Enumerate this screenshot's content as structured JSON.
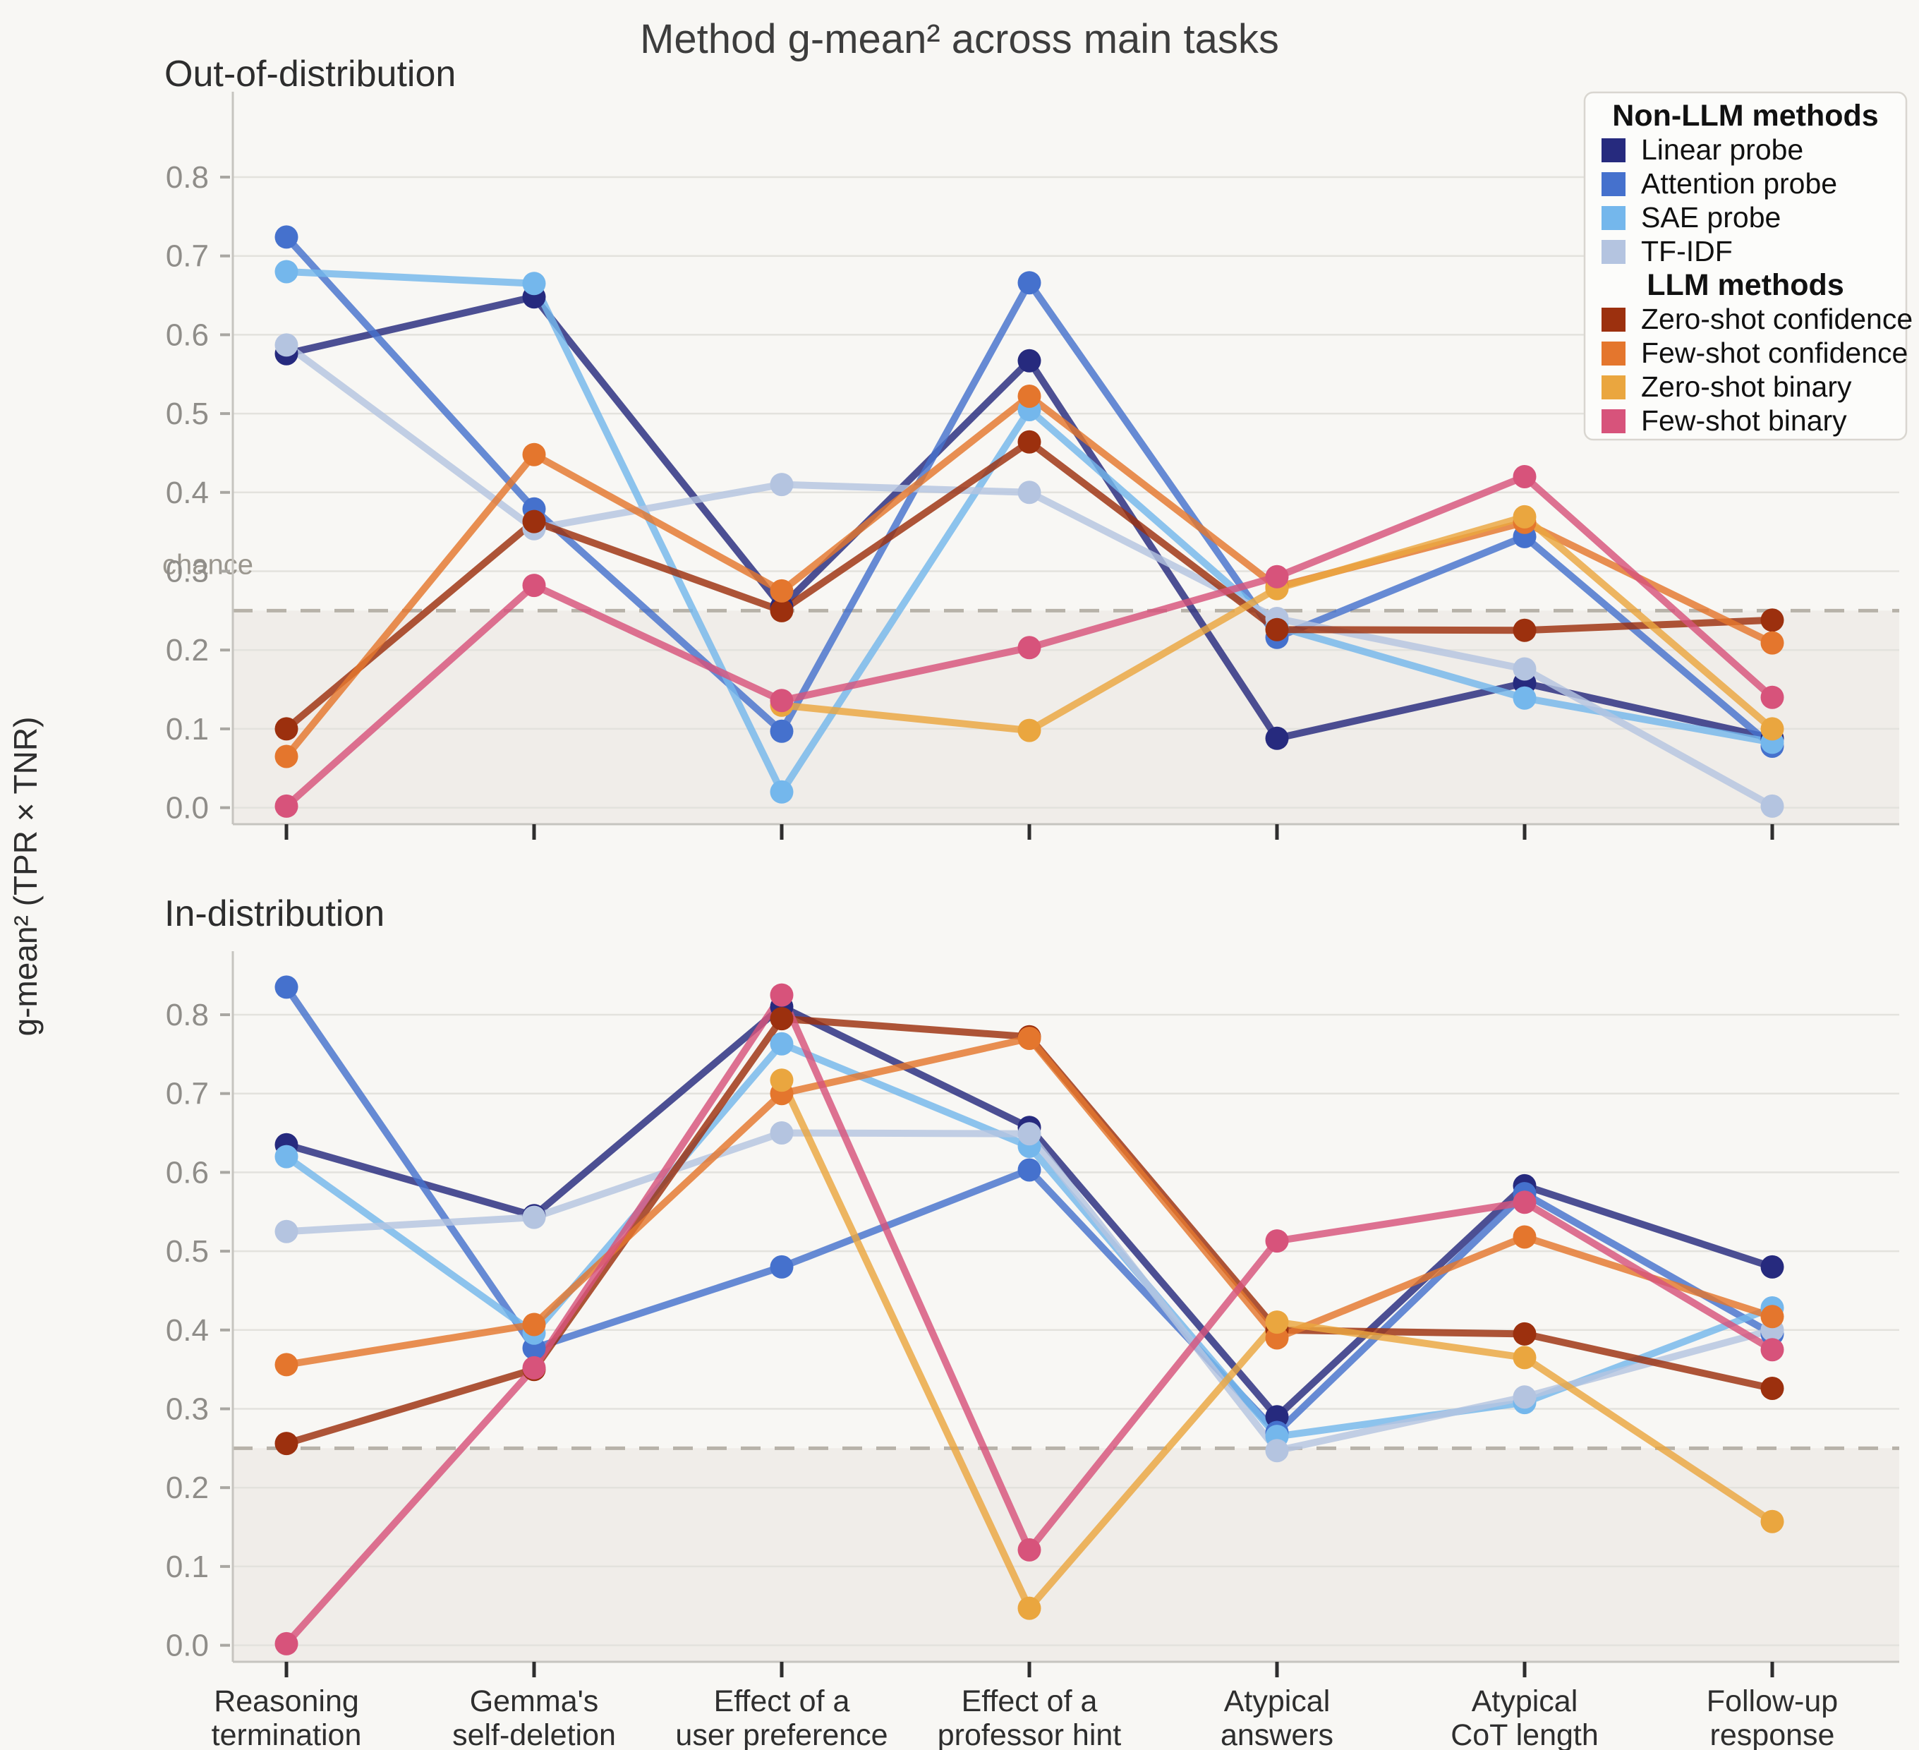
{
  "title": "Method g-mean² across main tasks",
  "y_axis_label": "g-mean² (TPR × TNR)",
  "chance_label": "chance",
  "chance_value": 0.25,
  "colors": {
    "linear_probe": "#262a7e",
    "attention_probe": "#4571cd",
    "sae_probe": "#74b7ec",
    "tfidf": "#b4c4e0",
    "zero_shot_confidence": "#9c300e",
    "few_shot_confidence": "#e4762d",
    "zero_shot_binary": "#eaa63f",
    "few_shot_binary": "#d7537b"
  },
  "legend": {
    "non_llm_header": "Non-LLM methods",
    "llm_header": "LLM methods",
    "non_llm_items": [
      {
        "key": "linear_probe",
        "label": "Linear probe"
      },
      {
        "key": "attention_probe",
        "label": "Attention probe"
      },
      {
        "key": "sae_probe",
        "label": "SAE probe"
      },
      {
        "key": "tfidf",
        "label": "TF-IDF"
      }
    ],
    "llm_items": [
      {
        "key": "zero_shot_confidence",
        "label": "Zero-shot confidence"
      },
      {
        "key": "few_shot_confidence",
        "label": "Few-shot confidence"
      },
      {
        "key": "zero_shot_binary",
        "label": "Zero-shot binary"
      },
      {
        "key": "few_shot_binary",
        "label": "Few-shot binary"
      }
    ]
  },
  "categories": [
    "Reasoning\ntermination",
    "Gemma's\nself-deletion",
    "Effect of a\nuser preference",
    "Effect of a\nprofessor hint",
    "Atypical\nanswers",
    "Atypical\nCoT length",
    "Follow-up\nresponse"
  ],
  "chart_data": [
    {
      "type": "line",
      "title": "Out-of-distribution",
      "xlabel": "",
      "ylabel": "g-mean² (TPR × TNR)",
      "ylim": [
        0.0,
        0.9
      ],
      "yticks": [
        0.0,
        0.1,
        0.2,
        0.3,
        0.4,
        0.5,
        0.6,
        0.7,
        0.8
      ],
      "grid": true,
      "chance_line": 0.25,
      "categories": [
        "Reasoning termination",
        "Gemma's self-deletion",
        "Effect of a user preference",
        "Effect of a professor hint",
        "Atypical answers",
        "Atypical CoT length",
        "Follow-up response"
      ],
      "series": [
        {
          "key": "linear_probe",
          "name": "Linear probe",
          "values": [
            0.576,
            0.648,
            0.255,
            0.567,
            0.088,
            0.158,
            0.088
          ]
        },
        {
          "key": "attention_probe",
          "name": "Attention probe",
          "values": [
            0.724,
            0.379,
            0.097,
            0.666,
            0.216,
            0.344,
            0.078
          ]
        },
        {
          "key": "sae_probe",
          "name": "SAE probe",
          "values": [
            0.68,
            0.665,
            0.02,
            0.505,
            0.23,
            0.139,
            0.083
          ]
        },
        {
          "key": "tfidf",
          "name": "TF-IDF",
          "values": [
            0.587,
            0.354,
            0.41,
            0.4,
            0.24,
            0.176,
            0.002
          ]
        },
        {
          "key": "zero_shot_confidence",
          "name": "Zero-shot confidence",
          "values": [
            0.1,
            0.363,
            0.25,
            0.464,
            0.226,
            0.225,
            0.238
          ]
        },
        {
          "key": "few_shot_confidence",
          "name": "Few-shot confidence",
          "values": [
            0.065,
            0.448,
            0.275,
            0.522,
            0.28,
            0.362,
            0.209
          ]
        },
        {
          "key": "zero_shot_binary",
          "name": "Zero-shot binary",
          "values": [
            null,
            null,
            0.13,
            0.098,
            0.278,
            0.369,
            0.1
          ]
        },
        {
          "key": "few_shot_binary",
          "name": "Few-shot binary",
          "values": [
            0.002,
            0.282,
            0.136,
            0.203,
            0.293,
            0.42,
            0.14
          ]
        }
      ]
    },
    {
      "type": "line",
      "title": "In-distribution",
      "xlabel": "",
      "ylabel": "g-mean² (TPR × TNR)",
      "ylim": [
        0.0,
        0.88
      ],
      "yticks": [
        0.0,
        0.1,
        0.2,
        0.3,
        0.4,
        0.5,
        0.6,
        0.7,
        0.8
      ],
      "grid": true,
      "chance_line": 0.25,
      "categories": [
        "Reasoning termination",
        "Gemma's self-deletion",
        "Effect of a user preference",
        "Effect of a professor hint",
        "Atypical answers",
        "Atypical CoT length",
        "Follow-up response"
      ],
      "series": [
        {
          "key": "linear_probe",
          "name": "Linear probe",
          "values": [
            0.635,
            0.545,
            0.81,
            0.657,
            0.29,
            0.583,
            0.48
          ]
        },
        {
          "key": "attention_probe",
          "name": "Attention probe",
          "values": [
            0.835,
            0.377,
            0.48,
            0.603,
            0.27,
            0.573,
            0.395
          ]
        },
        {
          "key": "sae_probe",
          "name": "SAE probe",
          "values": [
            0.62,
            0.396,
            0.763,
            0.633,
            0.265,
            0.308,
            0.428
          ]
        },
        {
          "key": "tfidf",
          "name": "TF-IDF",
          "values": [
            0.525,
            0.543,
            0.65,
            0.649,
            0.247,
            0.315,
            0.4
          ]
        },
        {
          "key": "zero_shot_confidence",
          "name": "Zero-shot confidence",
          "values": [
            0.256,
            0.35,
            0.795,
            0.772,
            0.4,
            0.395,
            0.326
          ]
        },
        {
          "key": "few_shot_confidence",
          "name": "Few-shot confidence",
          "values": [
            0.356,
            0.407,
            0.7,
            0.77,
            0.39,
            0.518,
            0.417
          ]
        },
        {
          "key": "zero_shot_binary",
          "name": "Zero-shot binary",
          "values": [
            null,
            null,
            0.717,
            0.047,
            0.41,
            0.365,
            0.157
          ]
        },
        {
          "key": "few_shot_binary",
          "name": "Few-shot binary",
          "values": [
            0.002,
            0.352,
            0.825,
            0.121,
            0.513,
            0.562,
            0.375
          ]
        }
      ]
    }
  ]
}
